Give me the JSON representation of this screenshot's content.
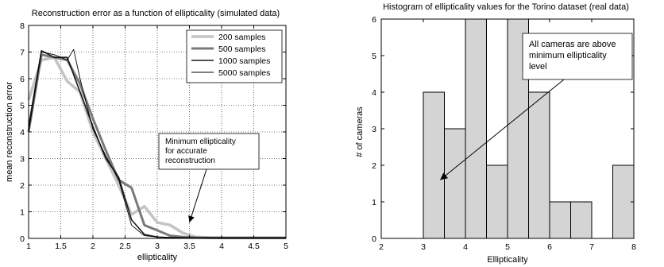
{
  "chart_data": [
    {
      "type": "line",
      "title": "Reconstruction error as a function of ellipticality (simulated data)",
      "xlabel": "ellipticality",
      "ylabel": "mean reconstruction error",
      "xlim": [
        1,
        5
      ],
      "ylim": [
        0,
        8
      ],
      "xticks": [
        "1",
        "1.5",
        "2",
        "2.5",
        "3",
        "3.5",
        "4",
        "4.5",
        "5"
      ],
      "yticks": [
        "0",
        "1",
        "2",
        "3",
        "4",
        "5",
        "6",
        "7",
        "8"
      ],
      "grid": true,
      "legend_position": "top-right",
      "series": [
        {
          "name": "200 samples",
          "color": "#c4c4c4",
          "x": [
            1.0,
            1.2,
            1.4,
            1.6,
            1.8,
            2.0,
            2.2,
            2.4,
            2.6,
            2.8,
            3.0,
            3.2,
            3.4,
            3.6,
            3.8,
            4.0,
            4.5,
            5.0
          ],
          "y": [
            5.2,
            6.7,
            6.8,
            5.9,
            5.5,
            4.0,
            3.0,
            2.0,
            0.9,
            1.2,
            0.6,
            0.5,
            0.2,
            0.05,
            0.03,
            0.02,
            0.02,
            0.02
          ]
        },
        {
          "name": "500 samples",
          "color": "#7a7a7a",
          "x": [
            1.0,
            1.2,
            1.4,
            1.6,
            1.8,
            2.0,
            2.2,
            2.4,
            2.6,
            2.8,
            3.0,
            3.2,
            3.4,
            3.6,
            4.0,
            4.5,
            5.0
          ],
          "y": [
            4.0,
            6.9,
            6.8,
            6.7,
            5.8,
            4.5,
            3.3,
            2.2,
            1.9,
            0.5,
            0.3,
            0.1,
            0.05,
            0.03,
            0.02,
            0.02,
            0.02
          ]
        },
        {
          "name": "1000 samples",
          "color": "#1a1a1a",
          "x": [
            1.0,
            1.2,
            1.4,
            1.6,
            1.8,
            2.0,
            2.2,
            2.4,
            2.6,
            2.8,
            3.0,
            3.2,
            3.5,
            4.0,
            4.5,
            5.0
          ],
          "y": [
            4.2,
            7.05,
            6.8,
            6.8,
            5.5,
            4.2,
            3.0,
            2.3,
            0.7,
            0.15,
            0.05,
            0.03,
            0.02,
            0.02,
            0.02,
            0.02
          ]
        },
        {
          "name": "5000 samples",
          "color": "#000000",
          "x": [
            1.0,
            1.2,
            1.4,
            1.6,
            1.7,
            1.8,
            2.0,
            2.2,
            2.4,
            2.6,
            2.8,
            3.0,
            3.5,
            4.0,
            4.5,
            5.0
          ],
          "y": [
            4.0,
            7.0,
            6.9,
            6.7,
            7.1,
            6.0,
            4.1,
            3.1,
            2.2,
            0.5,
            0.1,
            0.05,
            0.02,
            0.02,
            0.02,
            0.02
          ]
        }
      ],
      "annotations": [
        {
          "lines": [
            "Minimum ellipticality",
            "for accurate",
            "reconstruction"
          ],
          "arrow_to": [
            3.5,
            0.6
          ]
        }
      ]
    },
    {
      "type": "bar",
      "title": "Histogram of ellipticality values for the Torino dataset (real data)",
      "xlabel": "Ellipticality",
      "ylabel": "# of cameras",
      "xlim": [
        2,
        8
      ],
      "ylim": [
        0,
        6
      ],
      "xticks": [
        "2",
        "3",
        "4",
        "5",
        "6",
        "7",
        "8"
      ],
      "yticks": [
        "0",
        "1",
        "2",
        "3",
        "4",
        "5",
        "6"
      ],
      "grid": false,
      "bar_color": "#d4d4d4",
      "bins": [
        {
          "x0": 2.0,
          "x1": 2.5,
          "count": 0
        },
        {
          "x0": 2.5,
          "x1": 3.0,
          "count": 0
        },
        {
          "x0": 3.0,
          "x1": 3.5,
          "count": 4
        },
        {
          "x0": 3.5,
          "x1": 4.0,
          "count": 3
        },
        {
          "x0": 4.0,
          "x1": 4.5,
          "count": 6
        },
        {
          "x0": 4.5,
          "x1": 5.0,
          "count": 2
        },
        {
          "x0": 5.0,
          "x1": 5.5,
          "count": 6
        },
        {
          "x0": 5.5,
          "x1": 6.0,
          "count": 4
        },
        {
          "x0": 6.0,
          "x1": 6.5,
          "count": 1
        },
        {
          "x0": 6.5,
          "x1": 7.0,
          "count": 1
        },
        {
          "x0": 7.0,
          "x1": 7.5,
          "count": 0
        },
        {
          "x0": 7.5,
          "x1": 8.0,
          "count": 2
        }
      ],
      "annotations": [
        {
          "lines": [
            "All cameras are above",
            "minimum ellipticality",
            "level"
          ],
          "arrow_to": [
            3.4,
            1.6
          ]
        }
      ]
    }
  ]
}
